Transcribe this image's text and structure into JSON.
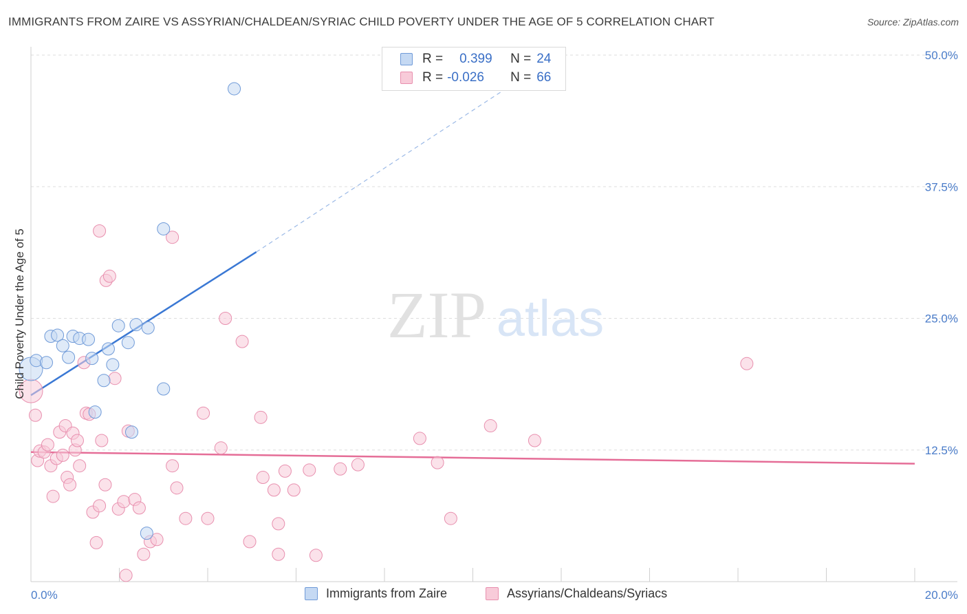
{
  "title": "IMMIGRANTS FROM ZAIRE VS ASSYRIAN/CHALDEAN/SYRIAC CHILD POVERTY UNDER THE AGE OF 5 CORRELATION CHART",
  "source": "Source: ZipAtlas.com",
  "watermark": {
    "zip": "ZIP",
    "atlas": "atlas"
  },
  "colors": {
    "blue": "#3a78d4",
    "blue_fill": "#c5d9f3",
    "pink": "#e56d97",
    "pink_fill": "#f8cbd9",
    "axis_text": "#4a7cc9",
    "grid": "#dddddd"
  },
  "legend": {
    "rows": [
      {
        "r_label": "R =",
        "r_value": "0.399",
        "n_label": "N =",
        "n_value": "24"
      },
      {
        "r_label": "R =",
        "r_value": "-0.026",
        "n_label": "N =",
        "n_value": "66"
      }
    ]
  },
  "chart_data": {
    "type": "scatter",
    "title": "IMMIGRANTS FROM ZAIRE VS ASSYRIAN/CHALDEAN/SYRIAC CHILD POVERTY UNDER THE AGE OF 5 CORRELATION CHART",
    "xlabel": "",
    "ylabel": "Child Poverty Under the Age of 5",
    "xlim": [
      0,
      20
    ],
    "ylim": [
      0,
      50
    ],
    "x_ticks": [
      "0.0%",
      "20.0%"
    ],
    "y_ticks": [
      {
        "value": 12.5,
        "label": "12.5%"
      },
      {
        "value": 25.0,
        "label": "25.0%"
      },
      {
        "value": 37.5,
        "label": "37.5%"
      },
      {
        "value": 50.0,
        "label": "50.0%"
      }
    ],
    "grid": true,
    "legend_position": "top-center",
    "series": [
      {
        "name": "Immigrants from Zaire",
        "color": "blue",
        "r": 0.399,
        "n": 24,
        "trend": {
          "x0": 0.0,
          "y0": 17.7,
          "x1": 5.1,
          "y1": 31.3,
          "dashed_to_x": 11.0,
          "dashed_to_y": 47.5
        },
        "points": [
          [
            0.0,
            20.2,
            "big"
          ],
          [
            0.12,
            21.0
          ],
          [
            0.35,
            20.8
          ],
          [
            0.45,
            23.3
          ],
          [
            0.6,
            23.4
          ],
          [
            0.72,
            22.4
          ],
          [
            0.85,
            21.3
          ],
          [
            0.95,
            23.3
          ],
          [
            1.1,
            23.1
          ],
          [
            1.3,
            23.0
          ],
          [
            1.38,
            21.2
          ],
          [
            1.45,
            16.1
          ],
          [
            1.65,
            19.1
          ],
          [
            1.75,
            22.1
          ],
          [
            1.85,
            20.6
          ],
          [
            1.98,
            24.3
          ],
          [
            2.2,
            22.7
          ],
          [
            2.38,
            24.4
          ],
          [
            2.65,
            24.1
          ],
          [
            2.28,
            14.2
          ],
          [
            2.62,
            4.6
          ],
          [
            3.0,
            18.3
          ],
          [
            3.0,
            33.5
          ],
          [
            4.6,
            46.8
          ]
        ]
      },
      {
        "name": "Assyrians/Chaldeans/Syriacs",
        "color": "pink",
        "r": -0.026,
        "n": 66,
        "trend": {
          "x0": 0.0,
          "y0": 12.3,
          "x1": 20.0,
          "y1": 11.2
        },
        "points": [
          [
            0.0,
            18.1,
            "big"
          ],
          [
            0.1,
            15.8
          ],
          [
            0.15,
            11.5
          ],
          [
            0.2,
            12.4
          ],
          [
            0.3,
            12.3
          ],
          [
            0.38,
            13.0
          ],
          [
            0.45,
            11.0
          ],
          [
            0.5,
            8.1
          ],
          [
            0.58,
            11.7
          ],
          [
            0.65,
            14.2
          ],
          [
            0.72,
            12.0
          ],
          [
            0.78,
            14.8
          ],
          [
            0.82,
            9.9
          ],
          [
            0.88,
            9.2
          ],
          [
            0.95,
            14.1
          ],
          [
            1.0,
            12.5
          ],
          [
            1.05,
            13.4
          ],
          [
            1.1,
            11.0
          ],
          [
            1.2,
            20.8
          ],
          [
            1.25,
            16.0
          ],
          [
            1.32,
            15.9
          ],
          [
            1.4,
            6.6
          ],
          [
            1.48,
            3.7
          ],
          [
            1.55,
            7.2
          ],
          [
            1.55,
            33.3
          ],
          [
            1.6,
            13.4
          ],
          [
            1.68,
            9.2
          ],
          [
            1.7,
            28.6
          ],
          [
            1.78,
            29.0
          ],
          [
            1.9,
            19.3
          ],
          [
            1.98,
            6.9
          ],
          [
            2.1,
            7.6
          ],
          [
            2.2,
            14.3
          ],
          [
            2.35,
            7.8
          ],
          [
            2.45,
            7.0
          ],
          [
            2.55,
            2.6
          ],
          [
            2.7,
            3.8
          ],
          [
            2.85,
            4.0
          ],
          [
            2.15,
            0.6
          ],
          [
            3.2,
            11.0
          ],
          [
            3.3,
            8.9
          ],
          [
            3.5,
            6.0
          ],
          [
            3.9,
            16.0
          ],
          [
            4.0,
            6.0
          ],
          [
            4.3,
            12.7
          ],
          [
            4.4,
            25.0
          ],
          [
            4.78,
            22.8
          ],
          [
            4.95,
            3.8
          ],
          [
            5.2,
            15.6
          ],
          [
            5.25,
            9.9
          ],
          [
            5.5,
            8.7
          ],
          [
            5.6,
            5.5
          ],
          [
            5.6,
            2.6
          ],
          [
            5.75,
            10.5
          ],
          [
            5.95,
            8.7
          ],
          [
            6.3,
            10.6
          ],
          [
            6.45,
            2.5
          ],
          [
            7.0,
            10.7
          ],
          [
            7.4,
            11.1
          ],
          [
            8.8,
            13.6
          ],
          [
            9.2,
            11.3
          ],
          [
            9.5,
            6.0
          ],
          [
            10.4,
            14.8
          ],
          [
            11.4,
            13.4
          ],
          [
            16.2,
            20.7
          ],
          [
            3.2,
            32.7
          ]
        ]
      }
    ]
  }
}
